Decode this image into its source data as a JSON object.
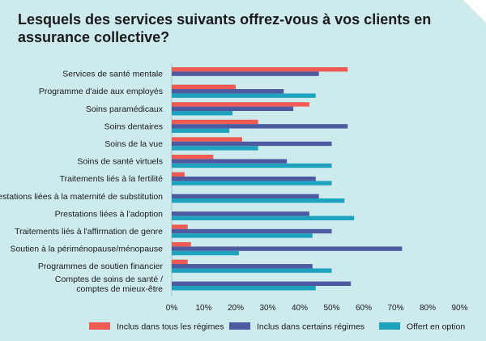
{
  "title": "Lesquels des services suivants offrez-vous à vos clients en assurance collective?",
  "colors": {
    "Inclus dans tous les régimes": "#ef5a52",
    "Inclus dans certains régimes": "#4e5aa0",
    "Offert en option": "#1fa2bd"
  },
  "chart_data": {
    "type": "bar",
    "orientation": "horizontal",
    "title": "Lesquels des services suivants offrez-vous à vos clients en assurance collective?",
    "categories": [
      "Services de santé mentale",
      "Programme d'aide aux employés",
      "Soins paramédicaux",
      "Soins dentaires",
      "Soins de la vue",
      "Soins de santé virtuels",
      "Traitements liés à la fertilité",
      "Prestations liées à la maternité de substitution",
      "Prestations liées à l'adoption",
      "Traitements liés à l'affirmation de genre",
      "Soutien à la périménopause/ménopause",
      "Programmes de soutien financier",
      "Comptes de soins de santé / comptes de mieux-être"
    ],
    "series": [
      {
        "name": "Inclus dans tous les régimes",
        "values": [
          55,
          20,
          43,
          27,
          22,
          13,
          4,
          null,
          null,
          5,
          6,
          5,
          null
        ]
      },
      {
        "name": "Inclus dans certains régimes",
        "values": [
          46,
          35,
          38,
          55,
          50,
          36,
          45,
          46,
          43,
          50,
          72,
          44,
          56
        ]
      },
      {
        "name": "Offert en option",
        "values": [
          null,
          45,
          19,
          18,
          27,
          50,
          50,
          54,
          57,
          44,
          21,
          50,
          45
        ]
      }
    ],
    "xlim": [
      0,
      90
    ],
    "xticks": [
      0,
      10,
      20,
      30,
      40,
      50,
      60,
      70,
      80,
      90
    ],
    "xtick_labels": [
      "0%",
      "10%",
      "20%",
      "30%",
      "40%",
      "50%",
      "60%",
      "70%",
      "80%",
      "90%"
    ],
    "legend": "bottom",
    "grid": false
  }
}
